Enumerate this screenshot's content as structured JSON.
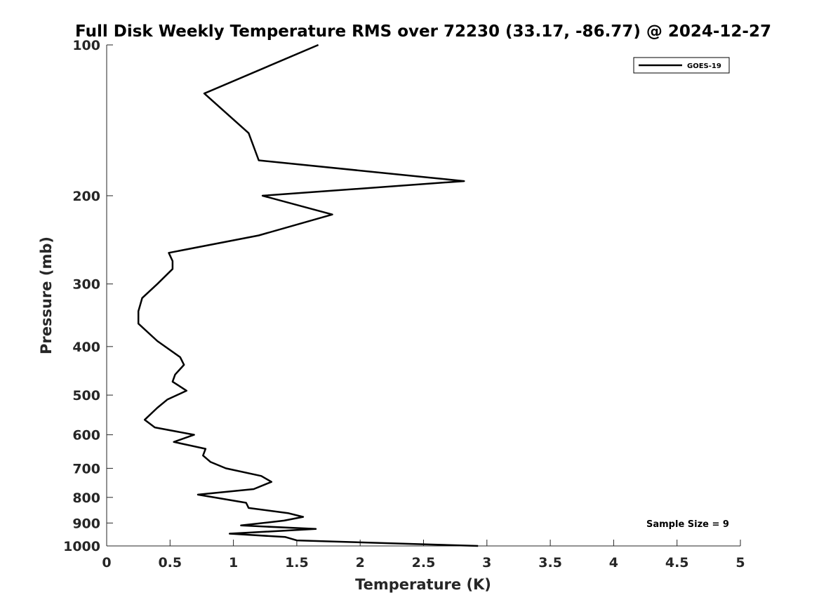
{
  "chart_data": {
    "type": "line",
    "title": "Full Disk Weekly Temperature RMS over 72230 (33.17, -86.77) @ 2024-12-27",
    "xlabel": "Temperature (K)",
    "ylabel": "Pressure (mb)",
    "xlim": [
      0,
      5
    ],
    "ylim": [
      100,
      1000
    ],
    "y_scale": "log",
    "y_reversed": true,
    "xticks": [
      0,
      0.5,
      1,
      1.5,
      2,
      2.5,
      3,
      3.5,
      4,
      4.5,
      5
    ],
    "xtick_labels": [
      "0",
      "0.5",
      "1",
      "1.5",
      "2",
      "2.5",
      "3",
      "3.5",
      "4",
      "4.5",
      "5"
    ],
    "yticks": [
      100,
      200,
      300,
      400,
      500,
      600,
      700,
      800,
      900,
      1000
    ],
    "ytick_labels": [
      "100",
      "200",
      "300",
      "400",
      "500",
      "600",
      "700",
      "800",
      "900",
      "1000"
    ],
    "grid": false,
    "legend_position": "top-right",
    "series": [
      {
        "name": "GOES-19",
        "color": "#000000",
        "points": [
          [
            1.67,
            100
          ],
          [
            0.77,
            125
          ],
          [
            1.12,
            150
          ],
          [
            1.2,
            170
          ],
          [
            2.82,
            187
          ],
          [
            1.23,
            200
          ],
          [
            1.78,
            218
          ],
          [
            1.2,
            240
          ],
          [
            0.49,
            260
          ],
          [
            0.52,
            270
          ],
          [
            0.52,
            280
          ],
          [
            0.4,
            300
          ],
          [
            0.28,
            320
          ],
          [
            0.25,
            340
          ],
          [
            0.25,
            360
          ],
          [
            0.4,
            390
          ],
          [
            0.58,
            420
          ],
          [
            0.61,
            435
          ],
          [
            0.54,
            455
          ],
          [
            0.52,
            470
          ],
          [
            0.63,
            490
          ],
          [
            0.48,
            510
          ],
          [
            0.4,
            530
          ],
          [
            0.3,
            560
          ],
          [
            0.38,
            580
          ],
          [
            0.69,
            600
          ],
          [
            0.53,
            620
          ],
          [
            0.78,
            640
          ],
          [
            0.76,
            660
          ],
          [
            0.82,
            680
          ],
          [
            0.94,
            700
          ],
          [
            1.22,
            725
          ],
          [
            1.3,
            745
          ],
          [
            1.16,
            770
          ],
          [
            0.72,
            790
          ],
          [
            1.1,
            820
          ],
          [
            1.12,
            840
          ],
          [
            1.43,
            860
          ],
          [
            1.55,
            875
          ],
          [
            1.4,
            890
          ],
          [
            1.06,
            910
          ],
          [
            1.65,
            925
          ],
          [
            0.97,
            945
          ],
          [
            1.41,
            960
          ],
          [
            1.5,
            975
          ],
          [
            2.93,
            1000
          ]
        ]
      }
    ],
    "annotations": [
      "Sample Size = 9"
    ]
  }
}
